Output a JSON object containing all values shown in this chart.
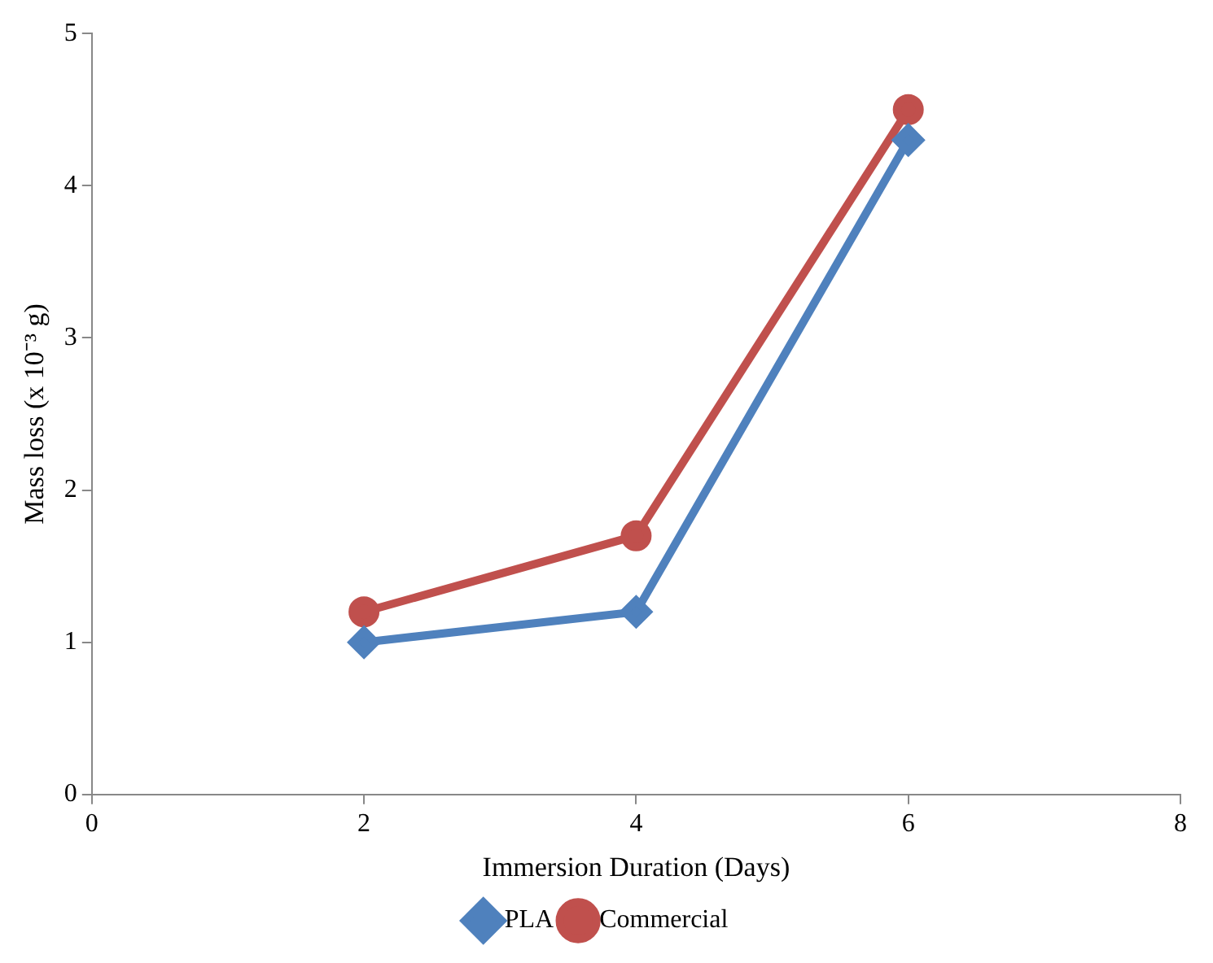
{
  "chart_data": {
    "type": "line",
    "xlabel": "Immersion Duration (Days)",
    "ylabel": "Mass loss (x 10⁻³ g)",
    "x": [
      2,
      4,
      6
    ],
    "series": [
      {
        "name": "PLA",
        "color": "#4f81bd",
        "values": [
          1.0,
          1.2,
          4.3
        ],
        "marker": "diamond"
      },
      {
        "name": "Commercial",
        "color": "#c0504d",
        "values": [
          1.2,
          1.7,
          4.5
        ],
        "marker": "circle"
      }
    ],
    "xlim": [
      0,
      8
    ],
    "xticks": [
      0,
      2,
      4,
      6,
      8
    ],
    "ylim": [
      0,
      5
    ],
    "yticks": [
      0,
      1,
      2,
      3,
      4,
      5
    ],
    "grid": false,
    "legend": "bottom",
    "line_style": "solid"
  }
}
